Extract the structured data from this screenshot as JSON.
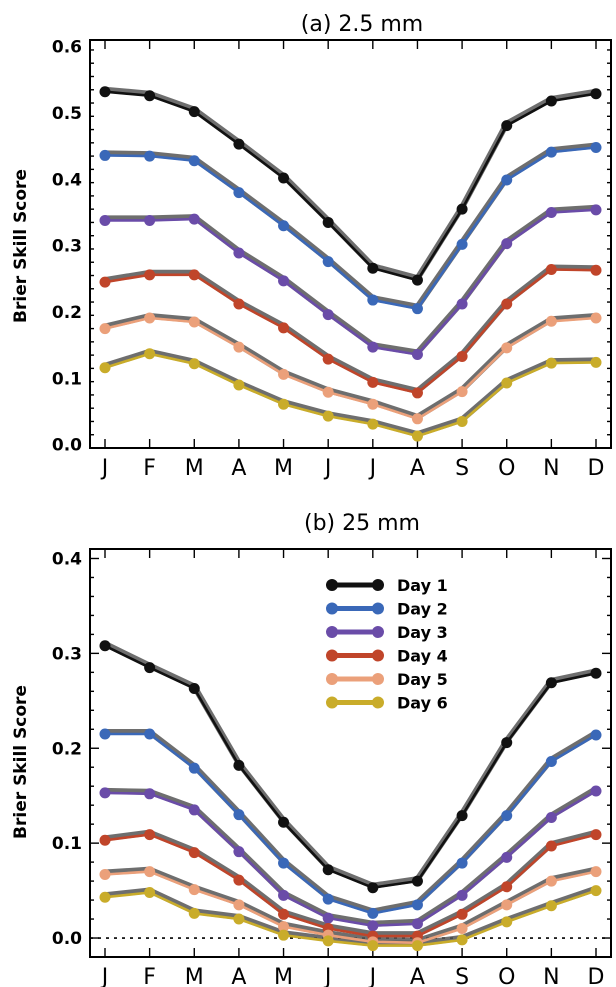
{
  "chart_data": [
    {
      "type": "line",
      "title": "(a) 2.5 mm",
      "xlabel": "",
      "ylabel": "Brier Skill Score",
      "categories": [
        "J",
        "F",
        "M",
        "A",
        "M",
        "J",
        "J",
        "A",
        "S",
        "O",
        "N",
        "D"
      ],
      "ylim": [
        -0.005,
        0.61
      ],
      "yticks": [
        0.0,
        0.1,
        0.2,
        0.3,
        0.4,
        0.5,
        0.6
      ],
      "ytick_labels": [
        "0.0",
        "0.1",
        "0.2",
        "0.3",
        "0.4",
        "0.5",
        "0.6"
      ],
      "zero_line": false,
      "series": [
        {
          "name": "Day 1",
          "color": "#111111",
          "values": [
            0.532,
            0.526,
            0.502,
            0.453,
            0.402,
            0.335,
            0.266,
            0.248,
            0.355,
            0.481,
            0.518,
            0.529
          ]
        },
        {
          "name": "Day 2",
          "color": "#3a68b8",
          "values": [
            0.436,
            0.435,
            0.428,
            0.38,
            0.33,
            0.276,
            0.218,
            0.205,
            0.302,
            0.399,
            0.441,
            0.448
          ]
        },
        {
          "name": "Day 3",
          "color": "#6a4ca8",
          "values": [
            0.338,
            0.338,
            0.34,
            0.289,
            0.247,
            0.196,
            0.147,
            0.136,
            0.212,
            0.303,
            0.35,
            0.354
          ]
        },
        {
          "name": "Day 4",
          "color": "#c0452a",
          "values": [
            0.245,
            0.256,
            0.256,
            0.212,
            0.176,
            0.129,
            0.094,
            0.078,
            0.133,
            0.212,
            0.264,
            0.263
          ]
        },
        {
          "name": "Day 5",
          "color": "#eba07a",
          "values": [
            0.175,
            0.191,
            0.185,
            0.147,
            0.106,
            0.079,
            0.061,
            0.039,
            0.08,
            0.146,
            0.186,
            0.191
          ]
        },
        {
          "name": "Day 6",
          "color": "#c9ac2a",
          "values": [
            0.116,
            0.137,
            0.122,
            0.09,
            0.061,
            0.043,
            0.031,
            0.013,
            0.035,
            0.093,
            0.123,
            0.124
          ]
        }
      ]
    },
    {
      "type": "line",
      "title": "(b) 25 mm",
      "xlabel": "",
      "ylabel": "Brier Skill Score",
      "categories": [
        "J",
        "F",
        "M",
        "A",
        "M",
        "J",
        "J",
        "A",
        "S",
        "O",
        "N",
        "D"
      ],
      "ylim": [
        -0.02,
        0.41
      ],
      "yticks": [
        0.0,
        0.1,
        0.2,
        0.3,
        0.4
      ],
      "ytick_labels": [
        "0.0",
        "0.1",
        "0.2",
        "0.3",
        "0.4"
      ],
      "zero_line": true,
      "legend_position": "upper-center",
      "series": [
        {
          "name": "Day 1",
          "color": "#111111",
          "values": [
            0.308,
            0.285,
            0.263,
            0.182,
            0.122,
            0.072,
            0.053,
            0.06,
            0.129,
            0.206,
            0.269,
            0.279
          ]
        },
        {
          "name": "Day 2",
          "color": "#3a68b8",
          "values": [
            0.215,
            0.215,
            0.179,
            0.13,
            0.079,
            0.041,
            0.026,
            0.035,
            0.079,
            0.129,
            0.186,
            0.214
          ]
        },
        {
          "name": "Day 3",
          "color": "#6a4ca8",
          "values": [
            0.153,
            0.152,
            0.135,
            0.091,
            0.045,
            0.021,
            0.013,
            0.015,
            0.045,
            0.085,
            0.127,
            0.155
          ]
        },
        {
          "name": "Day 4",
          "color": "#c0452a",
          "values": [
            0.103,
            0.109,
            0.09,
            0.061,
            0.025,
            0.01,
            0.002,
            0.002,
            0.025,
            0.054,
            0.097,
            0.109
          ]
        },
        {
          "name": "Day 5",
          "color": "#eba07a",
          "values": [
            0.067,
            0.07,
            0.051,
            0.035,
            0.012,
            0.003,
            -0.004,
            -0.005,
            0.01,
            0.035,
            0.06,
            0.07
          ]
        },
        {
          "name": "Day 6",
          "color": "#c9ac2a",
          "values": [
            0.043,
            0.048,
            0.026,
            0.02,
            0.003,
            -0.003,
            -0.008,
            -0.008,
            -0.002,
            0.017,
            0.034,
            0.05
          ]
        }
      ]
    }
  ]
}
